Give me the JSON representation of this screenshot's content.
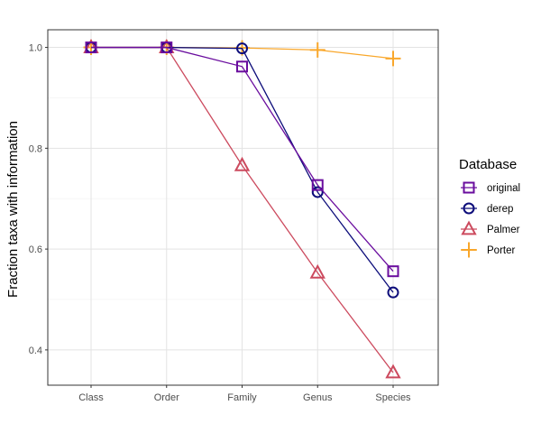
{
  "chart_data": {
    "type": "line",
    "categories": [
      "Class",
      "Order",
      "Family",
      "Genus",
      "Species"
    ],
    "ylabel": "Fraction taxa with information",
    "xlabel": "",
    "ylim": [
      0.33,
      1.035
    ],
    "yticks": [
      0.4,
      0.6,
      0.8,
      1.0
    ],
    "ytick_labels": [
      "0.4",
      "0.6",
      "0.8",
      "1.0"
    ],
    "grid": true,
    "legend": {
      "title": "Database",
      "placement": "right"
    },
    "series": [
      {
        "name": "original",
        "color": "#6a0d9e",
        "marker": "square",
        "values": [
          1.0,
          1.0,
          0.962,
          0.727,
          0.556
        ]
      },
      {
        "name": "derep",
        "color": "#0c0c7a",
        "marker": "circle",
        "values": [
          1.0,
          1.0,
          0.998,
          0.713,
          0.514
        ]
      },
      {
        "name": "Palmer",
        "color": "#cc4a5e",
        "marker": "triangle",
        "values": [
          1.0,
          1.0,
          0.766,
          0.553,
          0.355
        ]
      },
      {
        "name": "Porter",
        "color": "#f9a72b",
        "marker": "plus",
        "values": [
          1.0,
          1.0,
          0.999,
          0.995,
          0.978
        ]
      }
    ]
  }
}
